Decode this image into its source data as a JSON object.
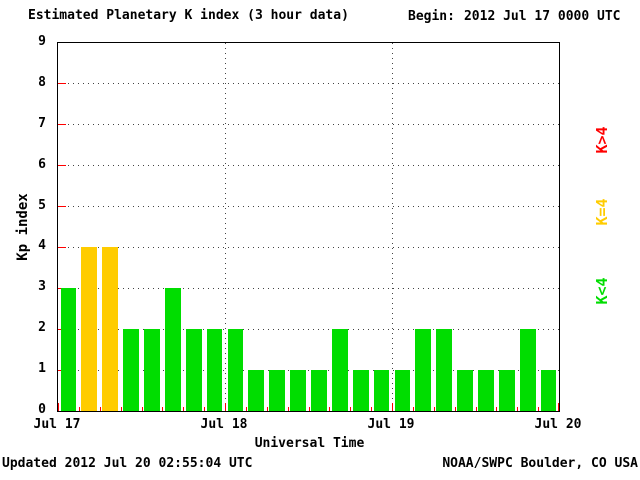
{
  "title": "Estimated Planetary K index (3 hour data)",
  "begin_label": "Begin:",
  "begin_value": "2012 Jul 17 0000 UTC",
  "footer": {
    "updated": "Updated 2012 Jul 20 02:55:04 UTC",
    "source": "NOAA/SWPC Boulder, CO USA"
  },
  "colors": {
    "k_low": "#00dd00",
    "k_mid": "#ffcc00",
    "k_high": "#ff0000",
    "tick": "#ff0000",
    "grid": "#444444"
  },
  "legend": [
    {
      "label": "K>4",
      "color": "#ff0000"
    },
    {
      "label": "K=4",
      "color": "#ffcc00"
    },
    {
      "label": "K<4",
      "color": "#00dd00"
    }
  ],
  "chart_data": {
    "type": "bar",
    "title": "Estimated Planetary K index (3 hour data)",
    "xlabel": "Universal Time",
    "ylabel": "Kp index",
    "ylim": [
      0,
      9
    ],
    "y_ticks": [
      0,
      1,
      2,
      3,
      4,
      5,
      6,
      7,
      8,
      9
    ],
    "x_tick_labels": [
      "Jul 17",
      "Jul 18",
      "Jul 19",
      "Jul 20"
    ],
    "interval_hours": 3,
    "values": [
      3,
      4,
      4,
      2,
      2,
      3,
      2,
      2,
      2,
      1,
      1,
      1,
      1,
      2,
      1,
      1,
      1,
      2,
      2,
      1,
      1,
      1,
      2,
      1
    ],
    "color_rule": "green if K<4, yellow if K=4, red if K>4",
    "grid": true,
    "legend_position": "right"
  }
}
